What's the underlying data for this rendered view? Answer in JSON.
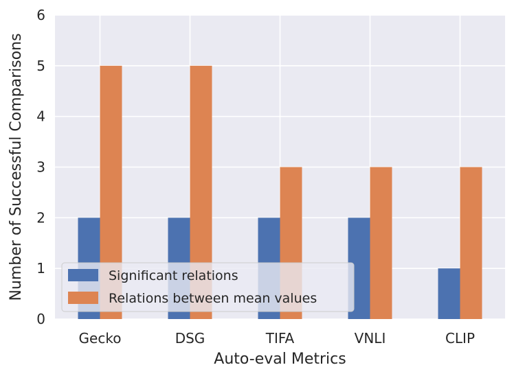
{
  "colors": {
    "plot_background": "#EAEAF2",
    "grid": "#FFFFFF",
    "series_0": "#4C72B0",
    "series_1": "#DD8452",
    "text": "#262626"
  },
  "chart_data": {
    "type": "bar",
    "title": "",
    "xlabel": "Auto-eval Metrics",
    "ylabel": "Number of Successful Comparisons",
    "categories": [
      "Gecko",
      "DSG",
      "TIFA",
      "VNLI",
      "CLIP"
    ],
    "series": [
      {
        "name": "Significant relations",
        "values": [
          2,
          2,
          2,
          2,
          1
        ]
      },
      {
        "name": "Relations between mean values",
        "values": [
          5,
          5,
          3,
          3,
          3
        ]
      }
    ],
    "ylim": [
      0,
      6
    ],
    "yticks": [
      "0",
      "1",
      "2",
      "3",
      "4",
      "5",
      "6"
    ],
    "grid": true,
    "legend_position": "lower-left"
  }
}
